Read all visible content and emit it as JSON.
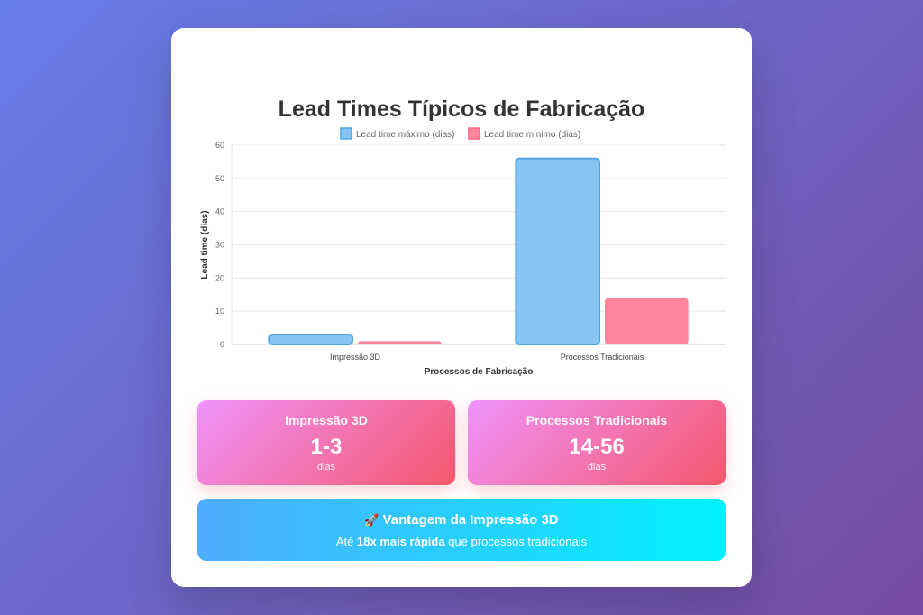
{
  "page": {
    "title": "Lead Times Típicos de Fabricação"
  },
  "chart_data": {
    "type": "bar",
    "categories": [
      "Impressão 3D",
      "Processos Tradicionais"
    ],
    "series": [
      {
        "name": "Lead time máximo (dias)",
        "values": [
          3,
          56
        ],
        "color": "#87c4f2",
        "border": "#4ea6e6"
      },
      {
        "name": "Lead time mínimo (dias)",
        "values": [
          1,
          14
        ],
        "color": "#ff849c",
        "border": "#ff6384"
      }
    ],
    "xlabel": "Processos de Fabricação",
    "ylabel": "Lead time (dias)",
    "ylim": [
      0,
      60
    ],
    "yticks": [
      0,
      10,
      20,
      30,
      40,
      50,
      60
    ],
    "grid": true,
    "legend": "top"
  },
  "stats": [
    {
      "label": "Impressão 3D",
      "value": "1-3",
      "unit": "dias"
    },
    {
      "label": "Processos Tradicionais",
      "value": "14-56",
      "unit": "dias"
    }
  ],
  "advantage": {
    "icon": "rocket-icon",
    "title": "Vantagem da Impressão 3D",
    "text_before": "Até ",
    "text_bold": "18x mais rápida",
    "text_after": " que processos tradicionais"
  }
}
